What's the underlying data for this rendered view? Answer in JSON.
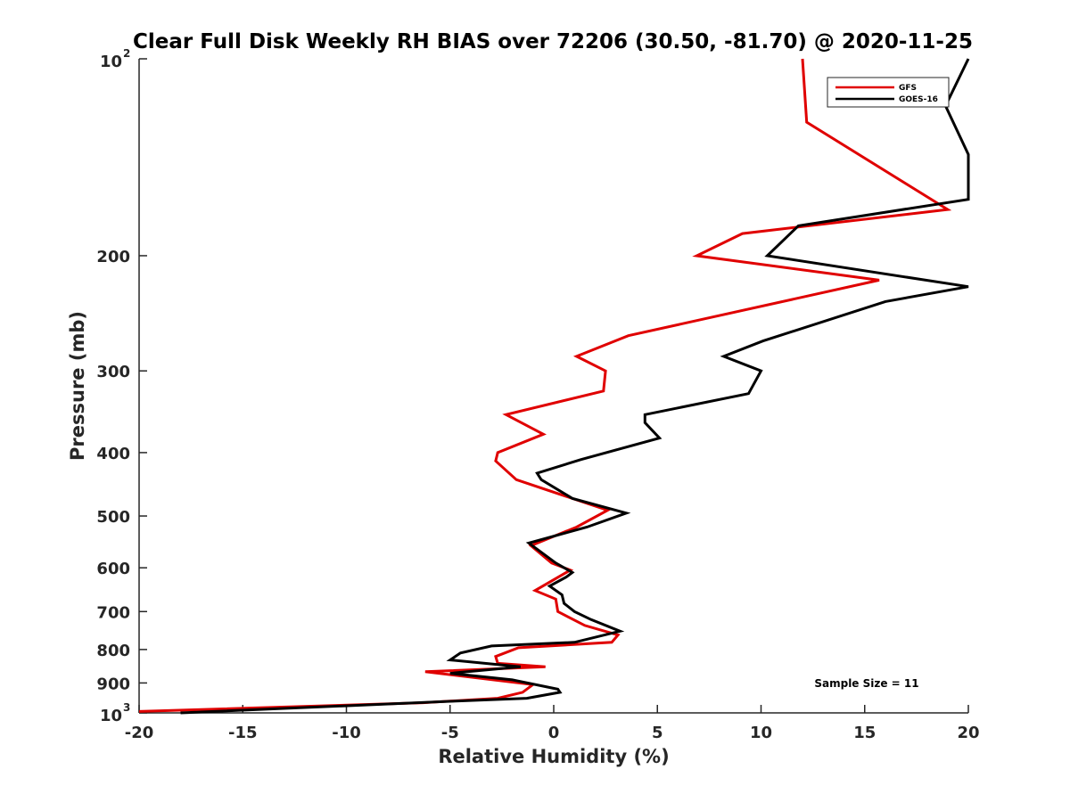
{
  "chart_data": {
    "type": "line",
    "title": "Clear Full Disk Weekly RH BIAS over 72206 (30.50, -81.70) @ 2020-11-25",
    "xlabel": "Relative Humidity (%)",
    "ylabel": "Pressure (mb)",
    "xlim": [
      -20,
      20
    ],
    "ylim": [
      1000,
      100
    ],
    "yscale": "log",
    "y_inverted": true,
    "x_ticks": [
      "-20",
      "-15",
      "-10",
      "-5",
      "0",
      "5",
      "10",
      "15",
      "20"
    ],
    "y_ticks": [
      {
        "value": 100,
        "base": "10",
        "exp": "2"
      },
      {
        "value": 200,
        "label": "200"
      },
      {
        "value": 300,
        "label": "300"
      },
      {
        "value": 400,
        "label": "400"
      },
      {
        "value": 500,
        "label": "500"
      },
      {
        "value": 600,
        "label": "600"
      },
      {
        "value": 700,
        "label": "700"
      },
      {
        "value": 800,
        "label": "800"
      },
      {
        "value": 900,
        "label": "900"
      },
      {
        "value": 1000,
        "base": "10",
        "exp": "3"
      }
    ],
    "grid": false,
    "legend_position": "top-right",
    "annotation": "Sample Size = 11",
    "series": [
      {
        "name": "GFS",
        "color": "#e00000",
        "points": [
          [
            12.0,
            100
          ],
          [
            12.2,
            125
          ],
          [
            19.0,
            170
          ],
          [
            9.1,
            185
          ],
          [
            6.9,
            200
          ],
          [
            15.7,
            218
          ],
          [
            3.6,
            265
          ],
          [
            1.1,
            285
          ],
          [
            2.5,
            300
          ],
          [
            2.4,
            322
          ],
          [
            -2.3,
            350
          ],
          [
            -0.5,
            375
          ],
          [
            -2.7,
            400
          ],
          [
            -2.8,
            412
          ],
          [
            -1.8,
            440
          ],
          [
            2.6,
            490
          ],
          [
            1.1,
            520
          ],
          [
            -1.1,
            555
          ],
          [
            -0.1,
            590
          ],
          [
            0.8,
            605
          ],
          [
            -0.9,
            650
          ],
          [
            0.1,
            670
          ],
          [
            0.2,
            700
          ],
          [
            1.5,
            735
          ],
          [
            3.1,
            760
          ],
          [
            2.8,
            780
          ],
          [
            -1.7,
            795
          ],
          [
            -2.8,
            820
          ],
          [
            -2.7,
            840
          ],
          [
            -0.4,
            850
          ],
          [
            -6.2,
            865
          ],
          [
            -1.0,
            905
          ],
          [
            -1.5,
            930
          ],
          [
            -2.7,
            950
          ],
          [
            -6.3,
            965
          ],
          [
            -20.0,
            995
          ]
        ]
      },
      {
        "name": "GOES-16",
        "color": "#000000",
        "points": [
          [
            20.0,
            100
          ],
          [
            18.9,
            118
          ],
          [
            20.0,
            140
          ],
          [
            20.0,
            164
          ],
          [
            11.8,
            180
          ],
          [
            10.3,
            200
          ],
          [
            20.0,
            223
          ],
          [
            16.0,
            235
          ],
          [
            10.1,
            270
          ],
          [
            8.2,
            285
          ],
          [
            10.0,
            300
          ],
          [
            9.4,
            325
          ],
          [
            4.4,
            350
          ],
          [
            4.4,
            360
          ],
          [
            5.1,
            380
          ],
          [
            1.3,
            410
          ],
          [
            -0.8,
            430
          ],
          [
            -0.6,
            440
          ],
          [
            0.9,
            470
          ],
          [
            3.5,
            495
          ],
          [
            1.6,
            520
          ],
          [
            -1.2,
            550
          ],
          [
            0.1,
            590
          ],
          [
            0.9,
            610
          ],
          [
            0.6,
            620
          ],
          [
            -0.2,
            640
          ],
          [
            0.4,
            660
          ],
          [
            0.5,
            680
          ],
          [
            1.0,
            700
          ],
          [
            1.8,
            720
          ],
          [
            3.2,
            750
          ],
          [
            1.0,
            780
          ],
          [
            -3.0,
            790
          ],
          [
            -4.5,
            810
          ],
          [
            -5.0,
            830
          ],
          [
            -1.6,
            850
          ],
          [
            -5.0,
            870
          ],
          [
            -2.0,
            890
          ],
          [
            0.2,
            920
          ],
          [
            0.3,
            930
          ],
          [
            -1.3,
            950
          ],
          [
            -5.0,
            960
          ],
          [
            -18.0,
            1000
          ]
        ]
      }
    ]
  }
}
